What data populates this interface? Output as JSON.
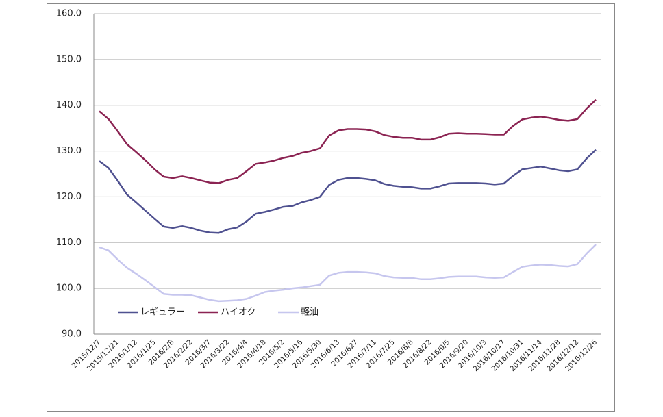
{
  "chart_data": {
    "type": "line",
    "categories": [
      "2015/12/7",
      null,
      "2015/12/21",
      null,
      "2016/1/12",
      null,
      "2016/1/25",
      null,
      "2016/2/8",
      null,
      "2016/2/22",
      null,
      "2016/3/7",
      null,
      "2016/3/22",
      null,
      "2016/4/4",
      null,
      "2016/4/18",
      null,
      "2016/5/2",
      null,
      "2016/5/16",
      null,
      "2016/5/30",
      null,
      "2016/6/13",
      null,
      "2016/627",
      null,
      "2016/7/11",
      null,
      "2016/7/25",
      null,
      "2016/8/8",
      null,
      "2016/8/22",
      null,
      "2016/9/5",
      null,
      "2016/9/20",
      null,
      "2016/10/3",
      null,
      "2016/10/17",
      null,
      "2016/10/31",
      null,
      "2016/11/14",
      null,
      "2016/11/28",
      null,
      "2016/12/12",
      null,
      "2016/12/26"
    ],
    "series": [
      {
        "name": "レギュラー",
        "color": "#4f5190",
        "values": [
          127.8,
          126.3,
          123.5,
          120.5,
          118.8,
          117.0,
          115.2,
          113.5,
          113.2,
          113.6,
          113.2,
          112.6,
          112.2,
          112.1,
          112.9,
          113.3,
          114.6,
          116.3,
          116.7,
          117.2,
          117.8,
          118.0,
          118.8,
          119.3,
          120.0,
          122.6,
          123.7,
          124.1,
          124.1,
          123.9,
          123.6,
          122.8,
          122.4,
          122.2,
          122.1,
          121.8,
          121.8,
          122.3,
          122.9,
          123.0,
          123.0,
          123.0,
          122.9,
          122.7,
          122.9,
          124.6,
          126.0,
          126.3,
          126.6,
          126.2,
          125.8,
          125.6,
          126.0,
          128.4,
          130.3
        ]
      },
      {
        "name": "ハイオク",
        "color": "#8b2352",
        "values": [
          138.7,
          137.0,
          134.3,
          131.5,
          129.8,
          128.0,
          126.0,
          124.4,
          124.1,
          124.5,
          124.1,
          123.6,
          123.1,
          123.0,
          123.7,
          124.1,
          125.6,
          127.2,
          127.5,
          127.9,
          128.5,
          128.9,
          129.6,
          130.0,
          130.6,
          133.4,
          134.5,
          134.8,
          134.8,
          134.7,
          134.3,
          133.5,
          133.1,
          132.9,
          132.9,
          132.5,
          132.5,
          133.0,
          133.8,
          133.9,
          133.8,
          133.8,
          133.7,
          133.6,
          133.6,
          135.5,
          136.9,
          137.3,
          137.5,
          137.2,
          136.8,
          136.6,
          137.0,
          139.3,
          141.2
        ]
      },
      {
        "name": "軽油",
        "color": "#c6c6ee",
        "values": [
          109.0,
          108.3,
          106.3,
          104.5,
          103.2,
          101.8,
          100.3,
          98.8,
          98.6,
          98.6,
          98.5,
          98.0,
          97.5,
          97.2,
          97.3,
          97.4,
          97.7,
          98.4,
          99.2,
          99.5,
          99.7,
          100.0,
          100.2,
          100.5,
          100.8,
          102.8,
          103.4,
          103.6,
          103.6,
          103.5,
          103.3,
          102.7,
          102.4,
          102.3,
          102.3,
          102.0,
          102.0,
          102.2,
          102.5,
          102.6,
          102.6,
          102.6,
          102.4,
          102.3,
          102.4,
          103.6,
          104.7,
          105.0,
          105.2,
          105.1,
          104.9,
          104.8,
          105.3,
          107.6,
          109.6
        ]
      }
    ],
    "ylim": [
      90,
      160
    ],
    "yticks": [
      {
        "value": 90,
        "label": "90.0"
      },
      {
        "value": 100,
        "label": "100.0"
      },
      {
        "value": 110,
        "label": "110.0"
      },
      {
        "value": 120,
        "label": "120.0"
      },
      {
        "value": 130,
        "label": "130.0"
      },
      {
        "value": 140,
        "label": "140.0"
      },
      {
        "value": 150,
        "label": "150.0"
      },
      {
        "value": 160,
        "label": "160.0"
      }
    ],
    "grid": true
  }
}
